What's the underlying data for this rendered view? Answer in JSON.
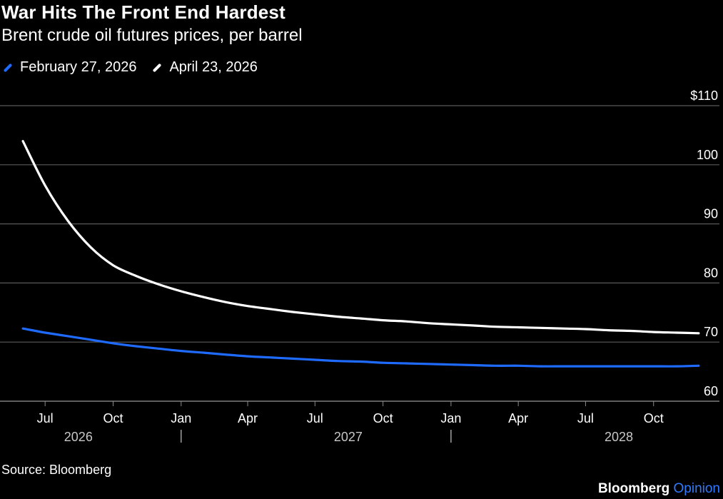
{
  "header": {
    "title": "War Hits The Front End Hardest",
    "subtitle": "Brent crude oil futures prices, per barrel"
  },
  "footer": {
    "source": "Source: Bloomberg",
    "brand_main": "Bloomberg",
    "brand_sub": "Opinion"
  },
  "colors": {
    "background": "#000000",
    "series_feb": "#1f6bff",
    "series_apr": "#ffffff",
    "grid": "#5a5a5a"
  },
  "chart_data": {
    "type": "line",
    "title": "War Hits The Front End Hardest",
    "subtitle": "Brent crude oil futures prices, per barrel",
    "ylim": [
      60,
      110
    ],
    "yticks": [
      {
        "value": 110,
        "label": "$110"
      },
      {
        "value": 100,
        "label": "100"
      },
      {
        "value": 90,
        "label": "90"
      },
      {
        "value": 80,
        "label": "80"
      },
      {
        "value": 70,
        "label": "70"
      },
      {
        "value": 60,
        "label": "60"
      }
    ],
    "xlim": [
      "2026-05-01",
      "2028-12-31"
    ],
    "xticks": [
      {
        "date": "2026-07-01",
        "label": "Jul"
      },
      {
        "date": "2026-10-01",
        "label": "Oct"
      },
      {
        "date": "2027-01-01",
        "label": "Jan"
      },
      {
        "date": "2027-04-01",
        "label": "Apr"
      },
      {
        "date": "2027-07-01",
        "label": "Jul"
      },
      {
        "date": "2027-10-01",
        "label": "Oct"
      },
      {
        "date": "2028-01-01",
        "label": "Jan"
      },
      {
        "date": "2028-04-01",
        "label": "Apr"
      },
      {
        "date": "2028-07-01",
        "label": "Jul"
      },
      {
        "date": "2028-10-01",
        "label": "Oct"
      }
    ],
    "year_labels": [
      {
        "date": "2026-08-15",
        "label": "2026"
      },
      {
        "date": "2027-08-15",
        "label": "2027"
      },
      {
        "date": "2028-08-15",
        "label": "2028"
      }
    ],
    "year_separators": [
      "2027-01-01",
      "2028-01-01"
    ],
    "grid": true,
    "legend_position": "top-left",
    "series": [
      {
        "name": "February 27, 2026",
        "color": "#1f6bff",
        "x": [
          "2026-06-01",
          "2026-07-01",
          "2026-08-01",
          "2026-09-01",
          "2026-10-01",
          "2026-11-01",
          "2026-12-01",
          "2027-01-01",
          "2027-02-01",
          "2027-03-01",
          "2027-04-01",
          "2027-05-01",
          "2027-06-01",
          "2027-07-01",
          "2027-08-01",
          "2027-09-01",
          "2027-10-01",
          "2027-11-01",
          "2027-12-01",
          "2028-01-01",
          "2028-02-01",
          "2028-03-01",
          "2028-04-01",
          "2028-05-01",
          "2028-06-01",
          "2028-07-01",
          "2028-08-01",
          "2028-09-01",
          "2028-10-01",
          "2028-11-01",
          "2028-12-01"
        ],
        "y": [
          72.3,
          71.6,
          71.0,
          70.4,
          69.8,
          69.3,
          68.9,
          68.5,
          68.2,
          67.9,
          67.6,
          67.4,
          67.2,
          67.0,
          66.8,
          66.7,
          66.5,
          66.4,
          66.3,
          66.2,
          66.1,
          66.0,
          66.0,
          65.9,
          65.9,
          65.9,
          65.9,
          65.9,
          65.9,
          65.9,
          66.0
        ]
      },
      {
        "name": "April 23, 2026",
        "color": "#ffffff",
        "x": [
          "2026-06-01",
          "2026-07-01",
          "2026-08-01",
          "2026-09-01",
          "2026-10-01",
          "2026-11-01",
          "2026-12-01",
          "2027-01-01",
          "2027-02-01",
          "2027-03-01",
          "2027-04-01",
          "2027-05-01",
          "2027-06-01",
          "2027-07-01",
          "2027-08-01",
          "2027-09-01",
          "2027-10-01",
          "2027-11-01",
          "2027-12-01",
          "2028-01-01",
          "2028-02-01",
          "2028-03-01",
          "2028-04-01",
          "2028-05-01",
          "2028-06-01",
          "2028-07-01",
          "2028-08-01",
          "2028-09-01",
          "2028-10-01",
          "2028-11-01",
          "2028-12-01"
        ],
        "y": [
          104.0,
          96.5,
          90.5,
          86.0,
          83.0,
          81.2,
          79.8,
          78.6,
          77.6,
          76.8,
          76.1,
          75.6,
          75.1,
          74.7,
          74.3,
          74.0,
          73.7,
          73.5,
          73.2,
          73.0,
          72.8,
          72.6,
          72.5,
          72.4,
          72.3,
          72.2,
          72.0,
          71.9,
          71.7,
          71.6,
          71.5
        ]
      }
    ]
  }
}
